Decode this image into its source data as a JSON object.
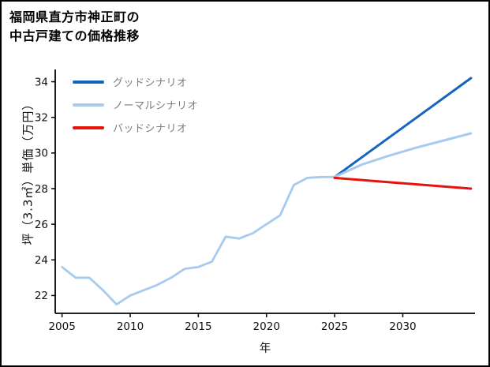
{
  "title": {
    "line1": "福岡県直方市神正町の",
    "line2": "中古戸建ての価格推移"
  },
  "axes": {
    "xlabel": "年",
    "ylabel": "坪（3.3㎡）単価（万円）"
  },
  "chart_data": {
    "type": "line",
    "title": "福岡県直方市神正町の中古戸建ての価格推移",
    "xlabel": "年",
    "ylabel": "坪（3.3㎡）単価（万円）",
    "xlim": [
      2004.5,
      2035.3
    ],
    "ylim": [
      21.0,
      34.6
    ],
    "xticks": [
      2005,
      2010,
      2015,
      2020,
      2025,
      2030
    ],
    "yticks": [
      22,
      24,
      26,
      28,
      30,
      32,
      34
    ],
    "grid": false,
    "legend_position": "upper-left",
    "series": [
      {
        "id": "history",
        "name": "",
        "in_legend": false,
        "color": "#a6cbee",
        "width": 2.8,
        "x": [
          2005,
          2006,
          2007,
          2008,
          2009,
          2010,
          2011,
          2012,
          2013,
          2014,
          2015,
          2016,
          2017,
          2018,
          2019,
          2020,
          2021,
          2022,
          2023,
          2024,
          2025
        ],
        "values": [
          23.6,
          23.0,
          23.0,
          22.3,
          21.5,
          22.0,
          22.3,
          22.6,
          23.0,
          23.5,
          23.6,
          23.9,
          25.3,
          25.2,
          25.5,
          26.0,
          26.5,
          28.2,
          28.6,
          28.65,
          28.65
        ]
      },
      {
        "id": "good",
        "name": "グッドシナリオ",
        "in_legend": true,
        "color": "#1565c0",
        "width": 3,
        "x": [
          2025,
          2035
        ],
        "values": [
          28.65,
          34.2
        ]
      },
      {
        "id": "normal",
        "name": "ノーマルシナリオ",
        "in_legend": true,
        "color": "#a6cbee",
        "width": 3,
        "x": [
          2025,
          2027,
          2029,
          2031,
          2033,
          2035
        ],
        "values": [
          28.65,
          29.35,
          29.85,
          30.3,
          30.7,
          31.1
        ]
      },
      {
        "id": "bad",
        "name": "バッドシナリオ",
        "in_legend": true,
        "color": "#e8120c",
        "width": 3,
        "x": [
          2025,
          2035
        ],
        "values": [
          28.6,
          28.0
        ]
      }
    ]
  }
}
